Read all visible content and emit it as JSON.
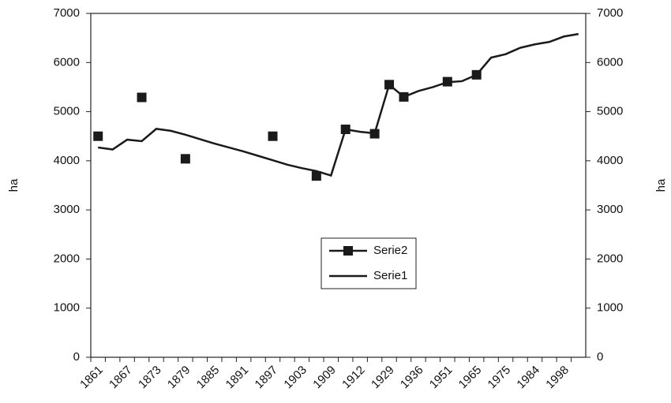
{
  "chart_data": {
    "type": "line",
    "categories": [
      "1861",
      null,
      "1867",
      null,
      "1873",
      null,
      "1879",
      null,
      "1885",
      null,
      "1891",
      null,
      "1897",
      null,
      "1903",
      null,
      "1909",
      null,
      "1912",
      null,
      "1929",
      null,
      "1936",
      null,
      "1951",
      null,
      "1965",
      null,
      "1975",
      null,
      "1984",
      null,
      "1998",
      null
    ],
    "series": [
      {
        "name": "Serie2",
        "color": "#1a1a1a",
        "marker": "square",
        "line": false,
        "values": [
          4500,
          null,
          null,
          5290,
          null,
          null,
          4040,
          null,
          null,
          null,
          null,
          null,
          4500,
          null,
          null,
          3690,
          null,
          4640,
          null,
          4550,
          5550,
          5300,
          null,
          null,
          5610,
          null,
          5750,
          null,
          null,
          null,
          null,
          null,
          null,
          null
        ]
      },
      {
        "name": "Serie1",
        "color": "#1a1a1a",
        "marker": "none",
        "line": true,
        "values": [
          4270,
          4230,
          4430,
          4400,
          4650,
          4610,
          4530,
          4440,
          4350,
          4270,
          4190,
          4100,
          4010,
          3920,
          3850,
          3790,
          3700,
          4640,
          4590,
          4560,
          5550,
          5300,
          5420,
          5500,
          5600,
          5620,
          5750,
          6100,
          6170,
          6300,
          6370,
          6420,
          6530,
          6580
        ]
      }
    ],
    "ylabel": "ha",
    "y2label": "ha",
    "ylim": [
      0,
      7000
    ],
    "yticks": [
      0,
      1000,
      2000,
      3000,
      4000,
      5000,
      6000,
      7000
    ],
    "y2lim": [
      0,
      7000
    ],
    "y2ticks": [
      0,
      1000,
      2000,
      3000,
      4000,
      5000,
      6000,
      7000
    ],
    "grid": false,
    "legend": "center"
  }
}
